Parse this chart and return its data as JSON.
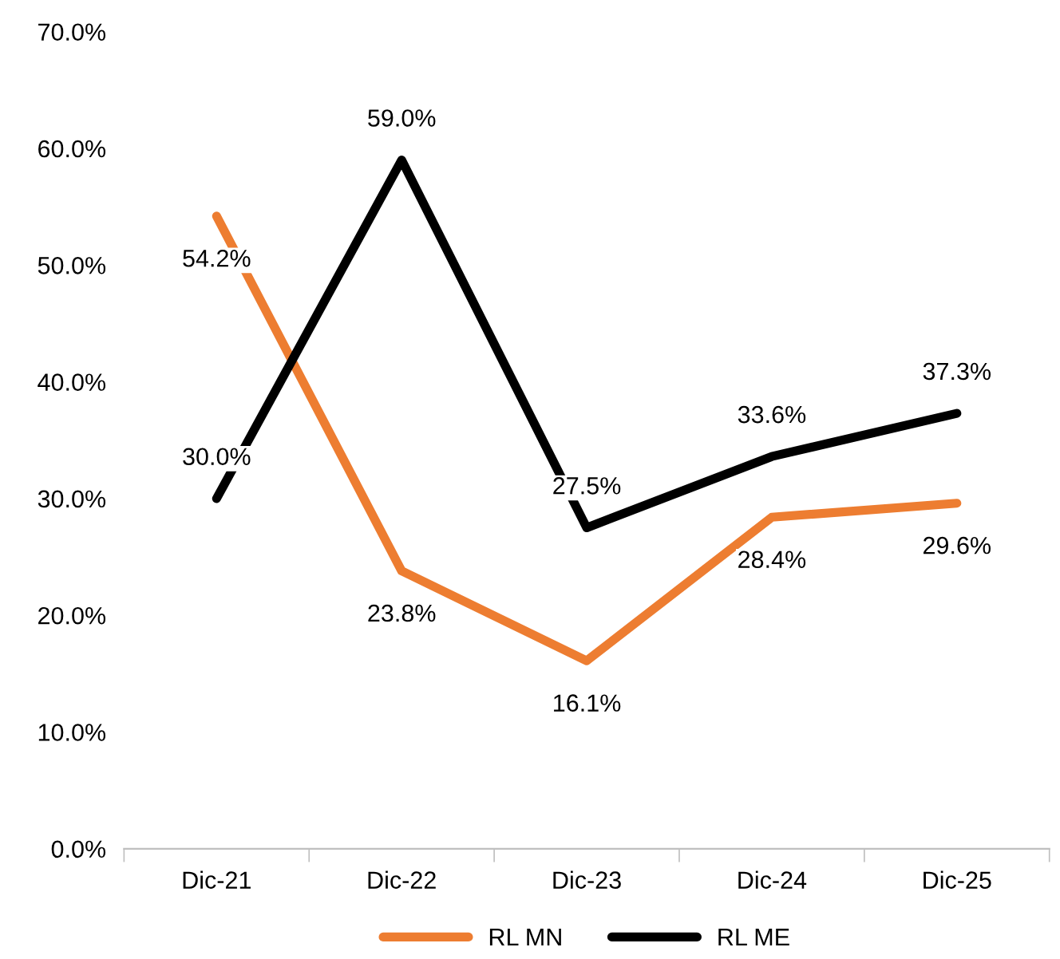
{
  "chart_data": {
    "type": "line",
    "categories": [
      "Dic-21",
      "Dic-22",
      "Dic-23",
      "Dic-24",
      "Dic-25"
    ],
    "series": [
      {
        "name": "RL MN",
        "color": "#ed7d31",
        "values": [
          54.2,
          23.8,
          16.1,
          28.4,
          29.6
        ],
        "value_labels": [
          "54.2%",
          "23.8%",
          "16.1%",
          "28.4%",
          "29.6%"
        ]
      },
      {
        "name": "RL ME",
        "color": "#000000",
        "values": [
          30.0,
          59.0,
          27.5,
          33.6,
          37.3
        ],
        "value_labels": [
          "30.0%",
          "59.0%",
          "27.5%",
          "33.6%",
          "37.3%"
        ]
      }
    ],
    "ylim": [
      0,
      70
    ],
    "yticks": [
      {
        "value": 0,
        "label": "0.0%"
      },
      {
        "value": 10,
        "label": "10.0%"
      },
      {
        "value": 20,
        "label": "20.0%"
      },
      {
        "value": 30,
        "label": "30.0%"
      },
      {
        "value": 40,
        "label": "40.0%"
      },
      {
        "value": 50,
        "label": "50.0%"
      },
      {
        "value": 60,
        "label": "60.0%"
      },
      {
        "value": 70,
        "label": "70.0%"
      }
    ],
    "grid": false,
    "legend": "bottom",
    "marker": "none",
    "line_style": "solid"
  }
}
